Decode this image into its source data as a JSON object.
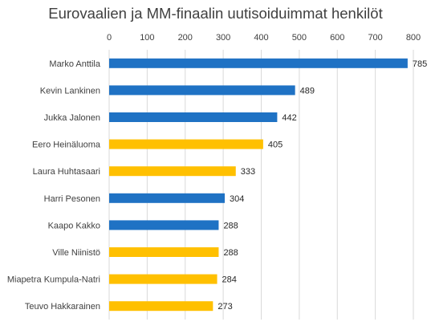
{
  "chart_data": {
    "type": "bar",
    "orientation": "horizontal",
    "title": "Eurovaalien ja MM-finaalin uutisoiduimmat henkilöt",
    "xlabel": "",
    "ylabel": "",
    "xlim": [
      0,
      800
    ],
    "x_ticks": [
      0,
      100,
      200,
      300,
      400,
      500,
      600,
      700,
      800
    ],
    "x_axis_position": "top",
    "grid": true,
    "legend": "none",
    "categories": [
      "Marko Anttila",
      "Kevin Lankinen",
      "Jukka Jalonen",
      "Eero Heinäluoma",
      "Laura Huhtasaari",
      "Harri Pesonen",
      "Kaapo Kakko",
      "Ville Niinistö",
      "Miapetra Kumpula-Natri",
      "Teuvo Hakkarainen"
    ],
    "values": [
      785,
      489,
      442,
      405,
      333,
      304,
      288,
      288,
      284,
      273
    ],
    "bar_colors": [
      "#1f72c4",
      "#1f72c4",
      "#1f72c4",
      "#ffc000",
      "#ffc000",
      "#1f72c4",
      "#1f72c4",
      "#ffc000",
      "#ffc000",
      "#ffc000"
    ],
    "colors": {
      "blue": "#1f72c4",
      "gold": "#ffc000",
      "grid": "#d9d9d9",
      "text": "#404040"
    }
  }
}
